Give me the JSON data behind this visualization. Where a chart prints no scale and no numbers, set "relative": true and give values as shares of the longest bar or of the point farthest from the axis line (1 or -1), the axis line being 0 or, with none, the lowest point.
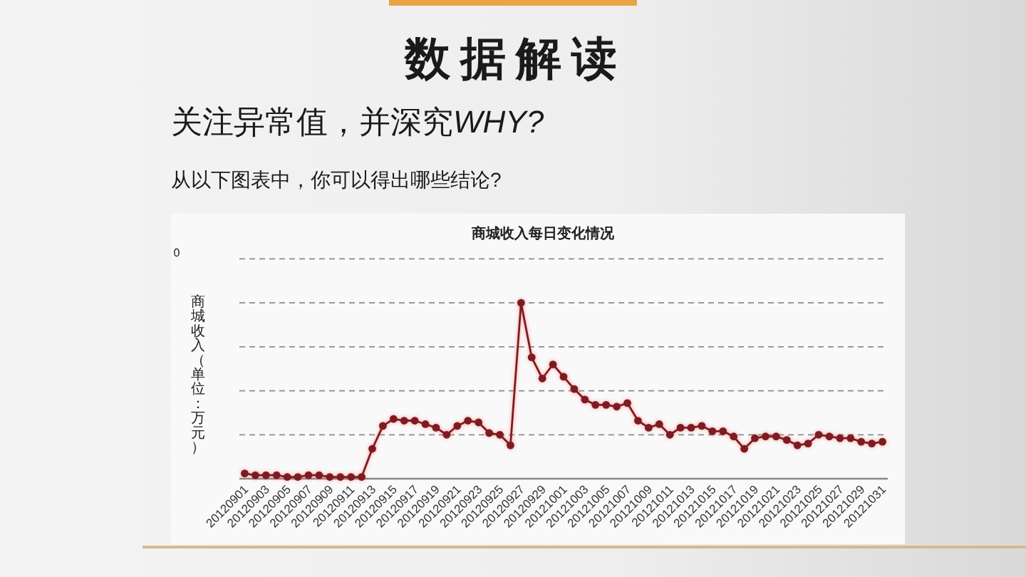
{
  "chart_data": {
    "type": "line",
    "title": "商城收入每日变化情况",
    "ylabel": "商城收入（单位：万元）",
    "annotations": [
      "数据解读",
      "关注异常值，并深究WHY?",
      "从以下图表中，你可以得出哪些结论?",
      "0"
    ],
    "categories": [
      "20120901",
      null,
      "20120903",
      null,
      "20120905",
      null,
      "20120907",
      null,
      "20120909",
      null,
      "20120911",
      null,
      "20120913",
      null,
      "20120915",
      null,
      "20120917",
      null,
      "20120919",
      null,
      "20120921",
      null,
      "20120923",
      null,
      "20120925",
      null,
      "20120927",
      null,
      "20120929",
      null,
      "20121001",
      null,
      "20121003",
      null,
      "20121005",
      null,
      "20121007",
      null,
      "20121009",
      null,
      "20121011",
      null,
      "20121013",
      null,
      "20121015",
      null,
      "20121017",
      null,
      "20121019",
      null,
      "20121021",
      null,
      "20121023",
      null,
      "20121025",
      null,
      "20121027",
      null,
      "20121029",
      null,
      "20121031"
    ],
    "series": [
      {
        "color": "#7a1c22",
        "values": [
          0.03,
          0.02,
          0.02,
          0.02,
          0.01,
          0.01,
          0.02,
          0.02,
          0.01,
          0.01,
          0.01,
          0.01,
          0.17,
          0.3,
          0.34,
          0.33,
          0.33,
          0.31,
          0.29,
          0.25,
          0.3,
          0.33,
          0.32,
          0.26,
          0.25,
          0.19,
          1,
          0.69,
          0.57,
          0.65,
          0.58,
          0.51,
          0.45,
          0.42,
          0.42,
          0.41,
          0.43,
          0.33,
          0.29,
          0.31,
          0.25,
          0.29,
          0.29,
          0.3,
          0.27,
          0.27,
          0.24,
          0.17,
          0.23,
          0.24,
          0.24,
          0.22,
          0.19,
          0.2,
          0.25,
          0.24,
          0.23,
          0.23,
          0.21,
          0.2,
          0.21
        ]
      }
    ],
    "relative": true,
    "grid": "y",
    "marker": "circle",
    "line_style": "solid"
  }
}
